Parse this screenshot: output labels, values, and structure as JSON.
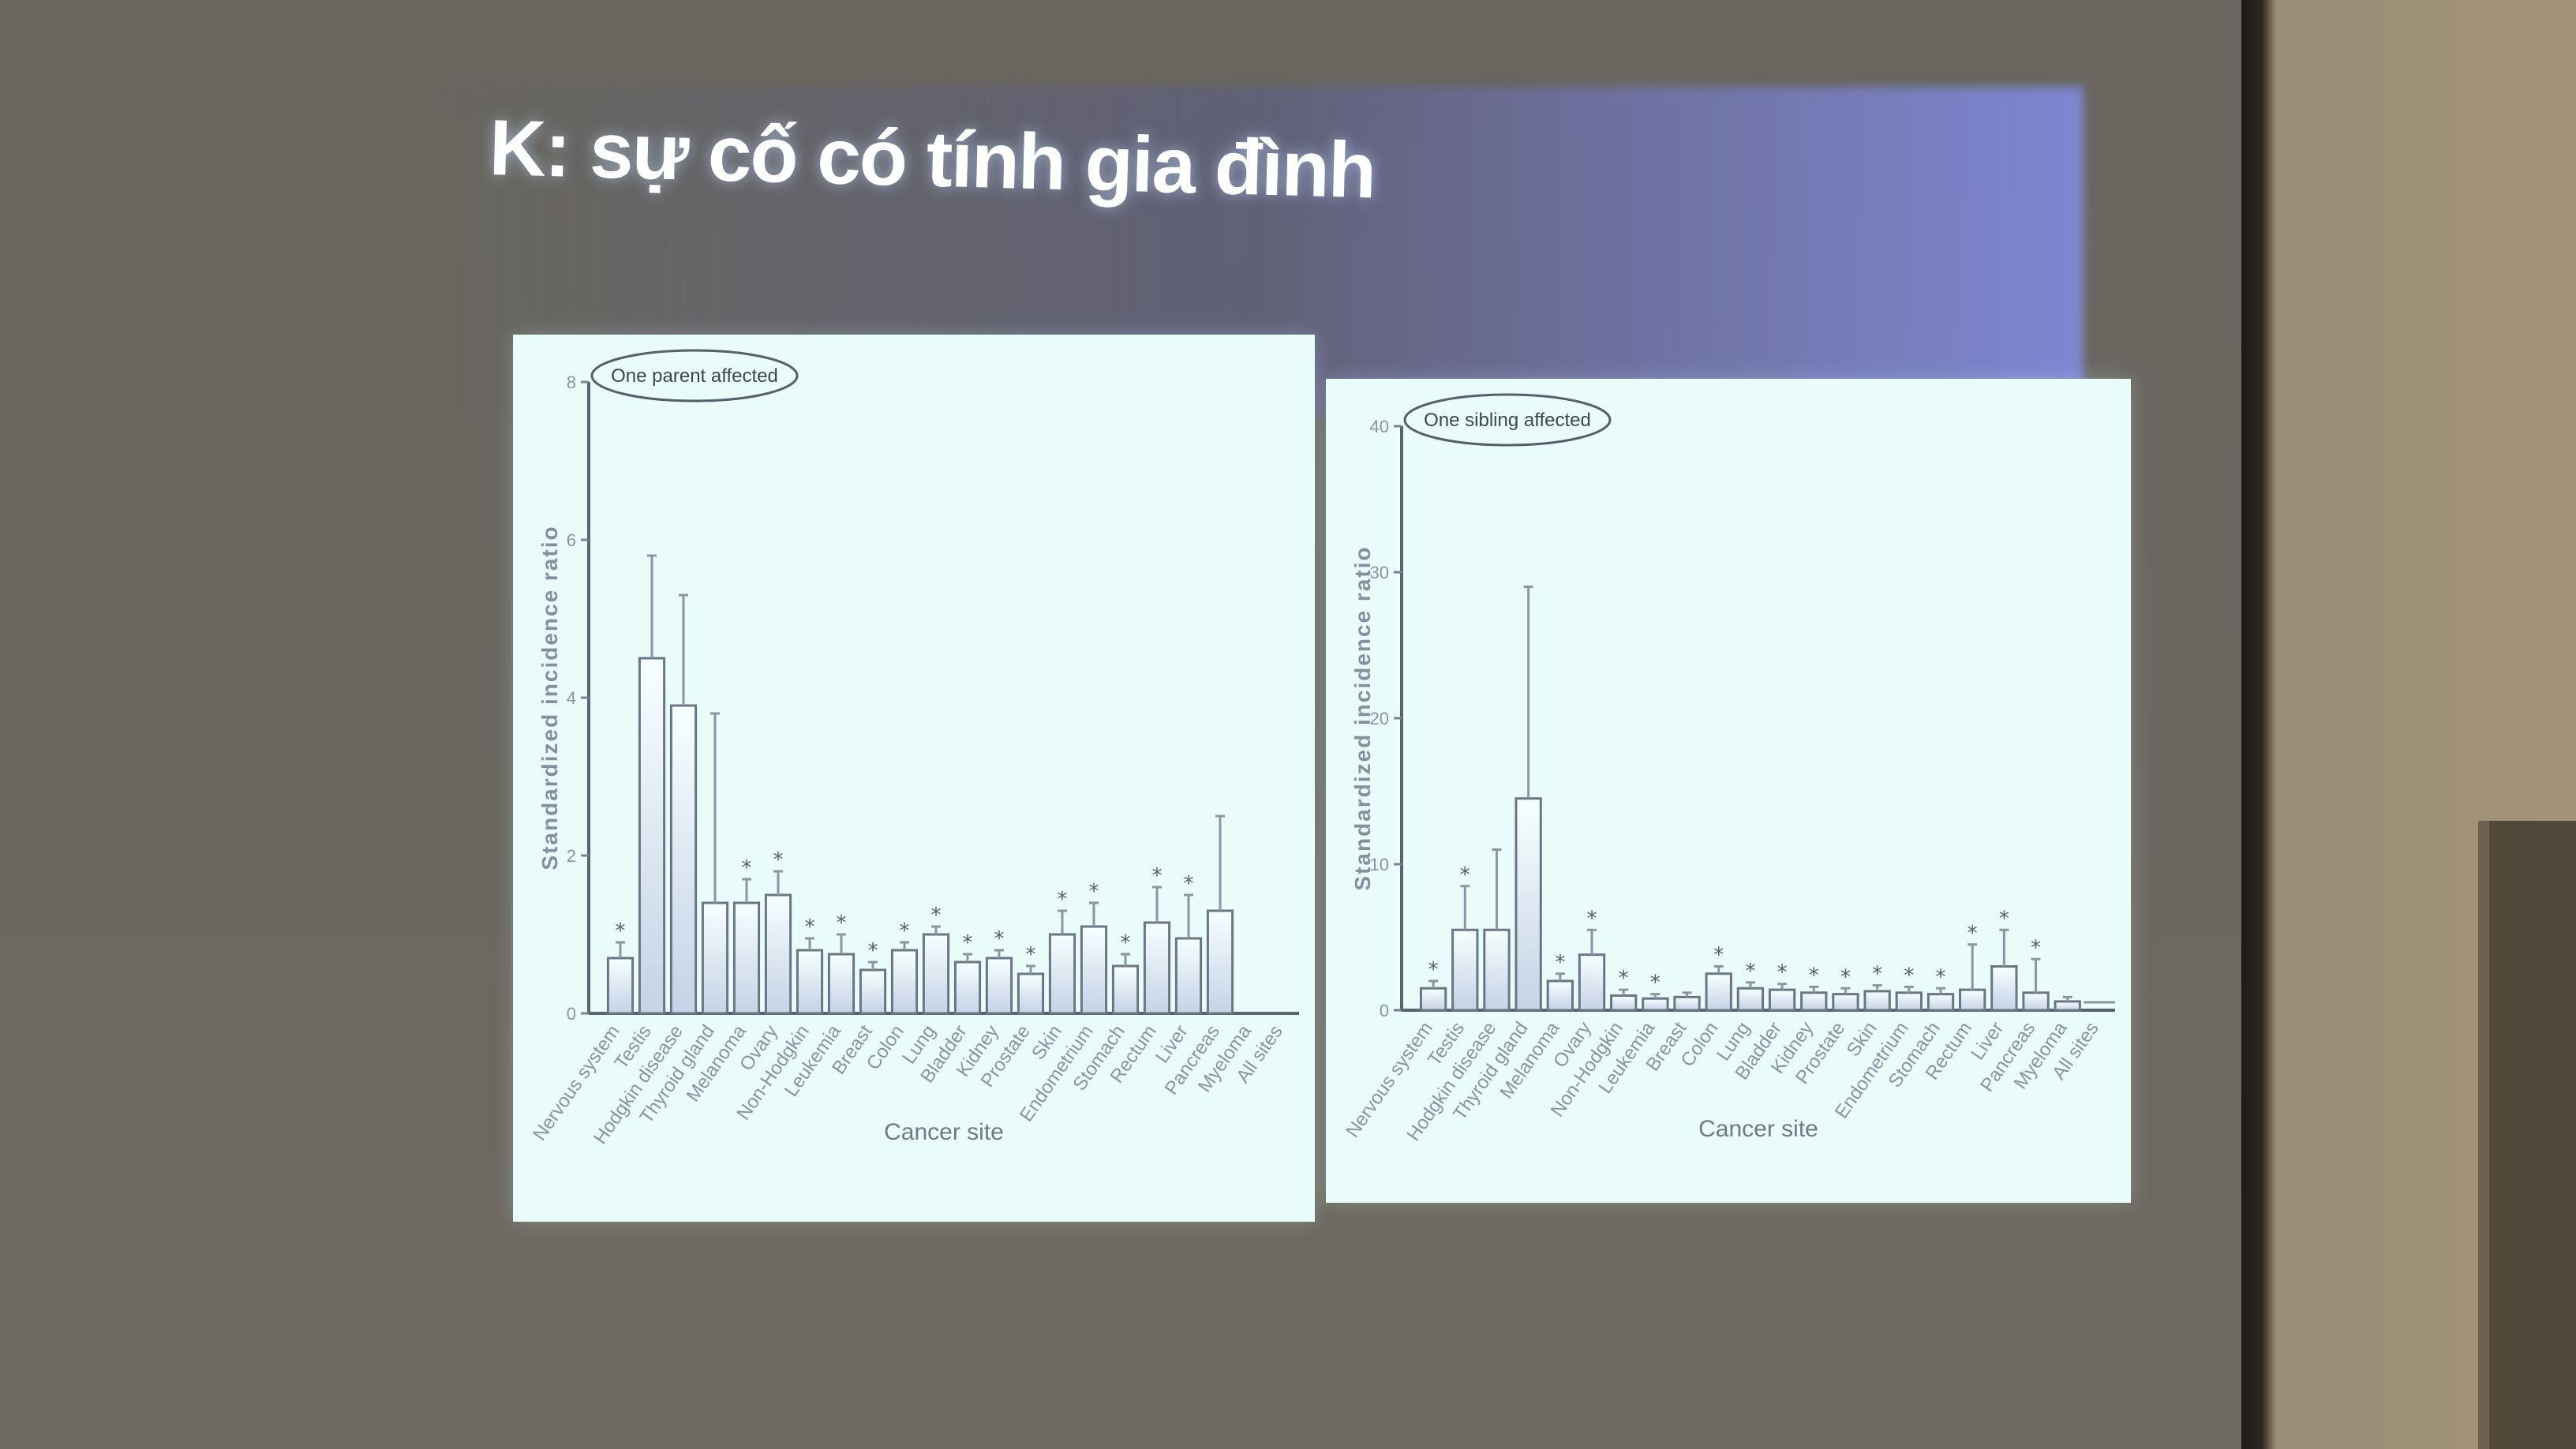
{
  "slide": {
    "title": "K: sự cố có tính gia đình"
  },
  "chart_data": [
    {
      "type": "bar",
      "legend": "One parent affected",
      "xlabel": "Cancer site",
      "ylabel": "Standardized incidence ratio",
      "ylim": [
        0,
        8
      ],
      "yticks": [
        "0",
        "2",
        "4",
        "6",
        "8"
      ],
      "categories": [
        "Nervous system",
        "Testis",
        "Hodgkin disease",
        "Thyroid gland",
        "Melanoma",
        "Ovary",
        "Non-Hodgkin",
        "Leukemia",
        "Breast",
        "Colon",
        "Lung",
        "Bladder",
        "Kidney",
        "Prostate",
        "Skin",
        "Endometrium",
        "Stomach",
        "Rectum",
        "Liver",
        "Pancreas",
        "Myeloma",
        "All sites"
      ],
      "values": [
        0.7,
        4.5,
        3.9,
        1.4,
        1.4,
        1.5,
        0.8,
        0.75,
        0.55,
        0.8,
        1.0,
        0.65,
        0.7,
        0.5,
        1.0,
        1.1,
        0.6,
        1.15,
        0.95,
        1.3,
        0,
        0
      ],
      "errors_upper": [
        0.9,
        5.8,
        5.3,
        3.8,
        1.7,
        1.8,
        0.95,
        1.0,
        0.65,
        0.9,
        1.1,
        0.75,
        0.8,
        0.6,
        1.3,
        1.4,
        0.75,
        1.6,
        1.5,
        2.5,
        0,
        0
      ],
      "significant": [
        true,
        false,
        false,
        false,
        true,
        true,
        true,
        true,
        true,
        true,
        true,
        true,
        true,
        true,
        true,
        true,
        true,
        true,
        true,
        false,
        false,
        false
      ]
    },
    {
      "type": "bar",
      "legend": "One sibling affected",
      "xlabel": "Cancer site",
      "ylabel": "Standardized incidence ratio",
      "ylim": [
        0,
        40
      ],
      "yticks": [
        "0",
        "10",
        "20",
        "30",
        "40"
      ],
      "categories": [
        "Nervous system",
        "Testis",
        "Hodgkin disease",
        "Thyroid gland",
        "Melanoma",
        "Ovary",
        "Non-Hodgkin",
        "Leukemia",
        "Breast",
        "Colon",
        "Lung",
        "Bladder",
        "Kidney",
        "Prostate",
        "Skin",
        "Endometrium",
        "Stomach",
        "Rectum",
        "Liver",
        "Pancreas",
        "Myeloma",
        "All sites"
      ],
      "values": [
        1.5,
        5.5,
        5.5,
        14.5,
        2.0,
        3.8,
        1.0,
        0.8,
        0.9,
        2.5,
        1.5,
        1.4,
        1.2,
        1.1,
        1.3,
        1.2,
        1.1,
        1.4,
        3.0,
        1.2,
        0.6,
        0
      ],
      "errors_upper": [
        2.0,
        8.5,
        11.0,
        29.0,
        2.5,
        5.5,
        1.4,
        1.1,
        1.2,
        3.0,
        1.9,
        1.8,
        1.6,
        1.5,
        1.7,
        1.6,
        1.5,
        4.5,
        5.5,
        3.5,
        0.9,
        0
      ],
      "significant": [
        true,
        true,
        false,
        false,
        true,
        true,
        true,
        true,
        false,
        true,
        true,
        true,
        true,
        true,
        true,
        true,
        true,
        true,
        true,
        true,
        false,
        false
      ]
    }
  ]
}
